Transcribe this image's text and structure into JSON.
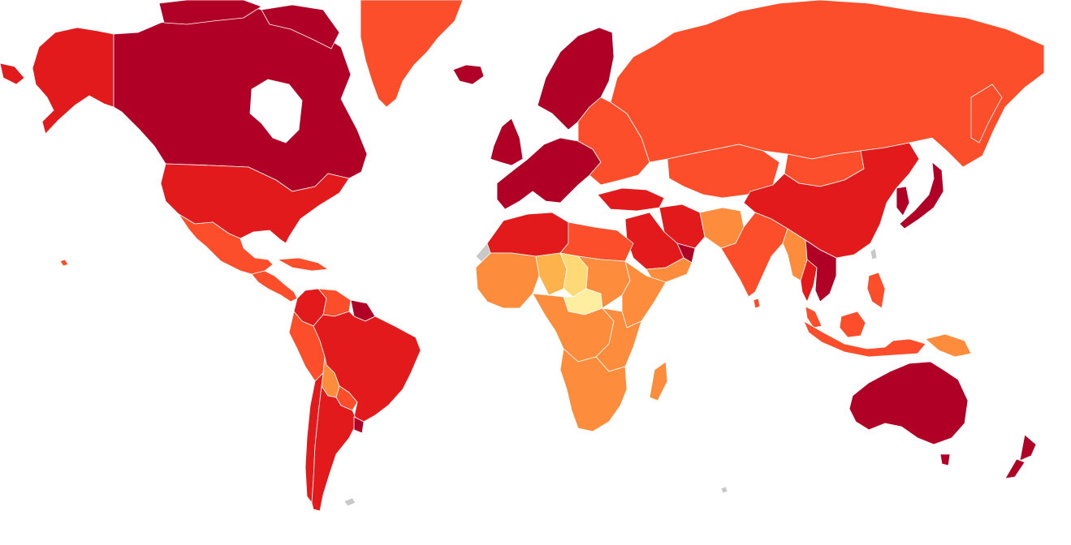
{
  "map": {
    "type": "choropleth",
    "projection": "mercator",
    "color_scale": [
      "#b00026",
      "#e31a1c",
      "#fc4e2a",
      "#fd8d3c",
      "#feb24c",
      "#fed976",
      "#ffeda0"
    ],
    "no_data_color": "#c8c8c8",
    "background": "#ffffff",
    "regions": [
      {
        "name": "canada",
        "class": 1
      },
      {
        "name": "alaska",
        "class": 2
      },
      {
        "name": "united-states",
        "class": 2
      },
      {
        "name": "greenland",
        "class": 3
      },
      {
        "name": "iceland",
        "class": 1
      },
      {
        "name": "mexico",
        "class": 3
      },
      {
        "name": "central-america",
        "class": 3
      },
      {
        "name": "caribbean",
        "class": 3
      },
      {
        "name": "colombia",
        "class": 2
      },
      {
        "name": "venezuela",
        "class": 3
      },
      {
        "name": "guianas",
        "class": 1
      },
      {
        "name": "peru",
        "class": 3
      },
      {
        "name": "brazil",
        "class": 2
      },
      {
        "name": "bolivia",
        "class": 4
      },
      {
        "name": "paraguay",
        "class": 3
      },
      {
        "name": "chile",
        "class": 2
      },
      {
        "name": "argentina",
        "class": 2
      },
      {
        "name": "uruguay",
        "class": 1
      },
      {
        "name": "scandinavia",
        "class": 1
      },
      {
        "name": "western-europe",
        "class": 1
      },
      {
        "name": "eastern-europe",
        "class": 3
      },
      {
        "name": "turkey",
        "class": 2
      },
      {
        "name": "russia",
        "class": 3
      },
      {
        "name": "kazakhstan",
        "class": 3
      },
      {
        "name": "mongolia",
        "class": 3
      },
      {
        "name": "china",
        "class": 2
      },
      {
        "name": "japan",
        "class": 1
      },
      {
        "name": "korea",
        "class": 1
      },
      {
        "name": "iran",
        "class": 2
      },
      {
        "name": "saudi-arabia",
        "class": 2
      },
      {
        "name": "gulf-states",
        "class": 1
      },
      {
        "name": "yemen-oman",
        "class": 4
      },
      {
        "name": "afghanistan-pakistan",
        "class": 4
      },
      {
        "name": "india",
        "class": 3
      },
      {
        "name": "myanmar",
        "class": 4
      },
      {
        "name": "thailand",
        "class": 2
      },
      {
        "name": "vietnam-laos-cambodia",
        "class": 1
      },
      {
        "name": "malaysia",
        "class": 3
      },
      {
        "name": "indonesia",
        "class": 3
      },
      {
        "name": "philippines",
        "class": 3
      },
      {
        "name": "papua-new-guinea",
        "class": 4
      },
      {
        "name": "australia",
        "class": 1
      },
      {
        "name": "new-zealand",
        "class": 1
      },
      {
        "name": "north-africa",
        "class": 2
      },
      {
        "name": "libya-egypt",
        "class": 3
      },
      {
        "name": "west-africa",
        "class": 4
      },
      {
        "name": "sahel",
        "class": 5
      },
      {
        "name": "chad",
        "class": 6
      },
      {
        "name": "central-african-republic",
        "class": 7
      },
      {
        "name": "sudan",
        "class": 4
      },
      {
        "name": "horn-of-africa",
        "class": 4
      },
      {
        "name": "central-africa",
        "class": 4
      },
      {
        "name": "east-africa",
        "class": 4
      },
      {
        "name": "southern-africa",
        "class": 4
      },
      {
        "name": "madagascar",
        "class": 4
      },
      {
        "name": "falklands",
        "class": 0
      },
      {
        "name": "western-sahara",
        "class": 0
      }
    ]
  }
}
